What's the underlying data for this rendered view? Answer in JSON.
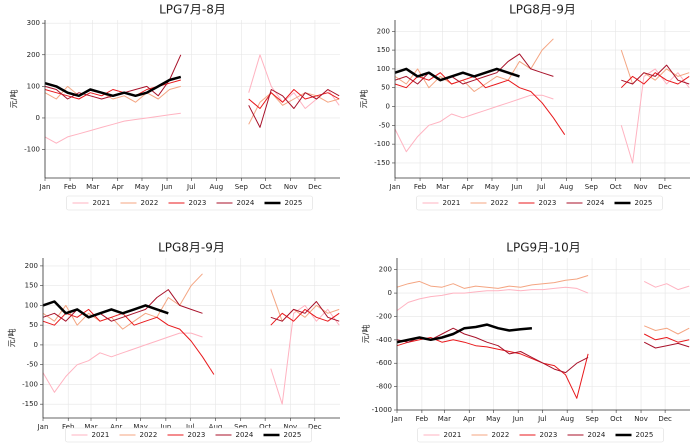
{
  "chart_data": [
    {
      "type": "line",
      "title": "LPG7月-8月",
      "y_label": "元/吨",
      "grid": true,
      "legend": "bottom",
      "x": [
        1,
        15,
        29,
        43,
        57,
        71,
        85,
        99,
        113,
        127,
        141,
        155,
        169,
        183,
        197,
        211,
        225,
        239,
        253,
        267,
        281,
        295,
        309,
        323,
        337,
        351,
        365
      ],
      "xlim": [
        1,
        366
      ],
      "xticks": [
        {
          "value": 1,
          "label": "Jan"
        },
        {
          "value": 32,
          "label": "Feb"
        },
        {
          "value": 60,
          "label": "Mar"
        },
        {
          "value": 91,
          "label": "Apr"
        },
        {
          "value": 121,
          "label": "May"
        },
        {
          "value": 152,
          "label": "Jun"
        },
        {
          "value": 182,
          "label": "Jul"
        },
        {
          "value": 213,
          "label": "Aug"
        },
        {
          "value": 244,
          "label": "Sep"
        },
        {
          "value": 274,
          "label": "Oct"
        },
        {
          "value": 305,
          "label": "Nov"
        },
        {
          "value": 335,
          "label": "Dec"
        }
      ],
      "ylim": [
        -190,
        310
      ],
      "yticks": [
        -100,
        0,
        100,
        200,
        300
      ],
      "series": [
        {
          "name": "2021",
          "color": "#ffb3c1",
          "linewidth": 1,
          "values": [
            -60,
            -80,
            -60,
            -50,
            -40,
            -30,
            -20,
            -10,
            -5,
            0,
            5,
            10,
            15,
            null,
            null,
            null,
            null,
            null,
            80,
            200,
            100,
            50,
            80,
            30,
            60,
            90,
            40
          ]
        },
        {
          "name": "2022",
          "color": "#f4a582",
          "linewidth": 1,
          "values": [
            80,
            60,
            100,
            70,
            90,
            80,
            60,
            70,
            50,
            80,
            60,
            90,
            100,
            null,
            null,
            null,
            null,
            null,
            -20,
            50,
            80,
            40,
            60,
            80,
            70,
            50,
            60
          ]
        },
        {
          "name": "2023",
          "color": "#e8191c",
          "linewidth": 1,
          "values": [
            90,
            80,
            70,
            60,
            80,
            70,
            90,
            80,
            70,
            90,
            100,
            110,
            120,
            null,
            null,
            null,
            null,
            null,
            60,
            30,
            80,
            50,
            90,
            60,
            70,
            80,
            60
          ]
        },
        {
          "name": "2024",
          "color": "#a8122a",
          "linewidth": 1,
          "values": [
            100,
            90,
            60,
            80,
            70,
            60,
            70,
            80,
            90,
            100,
            70,
            120,
            200,
            null,
            null,
            null,
            null,
            null,
            40,
            -30,
            90,
            70,
            30,
            80,
            60,
            90,
            70
          ]
        },
        {
          "name": "2025",
          "color": "#000000",
          "linewidth": 2.5,
          "values": [
            110,
            100,
            80,
            70,
            90,
            80,
            70,
            80,
            70,
            80,
            100,
            120,
            130,
            null,
            null,
            null,
            null,
            null,
            null,
            null,
            null,
            null,
            null,
            null,
            null,
            null,
            null
          ]
        }
      ]
    },
    {
      "type": "line",
      "title": "LPG8月-9月",
      "y_label": "元/吨",
      "grid": true,
      "legend": "bottom",
      "x": [
        1,
        15,
        29,
        43,
        57,
        71,
        85,
        99,
        113,
        127,
        141,
        155,
        169,
        183,
        197,
        211,
        225,
        239,
        253,
        267,
        281,
        295,
        309,
        323,
        337,
        351,
        365
      ],
      "xlim": [
        1,
        366
      ],
      "xticks": [
        {
          "value": 1,
          "label": "Jan"
        },
        {
          "value": 32,
          "label": "Feb"
        },
        {
          "value": 60,
          "label": "Mar"
        },
        {
          "value": 91,
          "label": "Apr"
        },
        {
          "value": 121,
          "label": "May"
        },
        {
          "value": 152,
          "label": "Jun"
        },
        {
          "value": 182,
          "label": "Jul"
        },
        {
          "value": 213,
          "label": "Aug"
        },
        {
          "value": 244,
          "label": "Sep"
        },
        {
          "value": 274,
          "label": "Oct"
        },
        {
          "value": 305,
          "label": "Nov"
        },
        {
          "value": 335,
          "label": "Dec"
        }
      ],
      "ylim": [
        -190,
        230
      ],
      "yticks": [
        -150,
        -100,
        -50,
        0,
        50,
        100,
        150,
        200
      ],
      "series": [
        {
          "name": "2021",
          "color": "#ffb3c1",
          "linewidth": 1,
          "values": [
            -60,
            -120,
            -80,
            -50,
            -40,
            -20,
            -30,
            -20,
            -10,
            0,
            10,
            20,
            30,
            30,
            20,
            null,
            null,
            null,
            null,
            null,
            -50,
            -150,
            80,
            100,
            60,
            90,
            50
          ]
        },
        {
          "name": "2022",
          "color": "#f4a582",
          "linewidth": 1,
          "values": [
            80,
            60,
            100,
            50,
            80,
            60,
            70,
            40,
            60,
            80,
            70,
            120,
            100,
            150,
            180,
            null,
            null,
            null,
            null,
            null,
            150,
            60,
            90,
            70,
            100,
            80,
            90
          ]
        },
        {
          "name": "2023",
          "color": "#e8191c",
          "linewidth": 1,
          "values": [
            60,
            50,
            80,
            70,
            90,
            60,
            70,
            80,
            50,
            60,
            70,
            50,
            40,
            10,
            -30,
            -75,
            null,
            null,
            null,
            null,
            50,
            80,
            60,
            90,
            70,
            60,
            80
          ]
        },
        {
          "name": "2024",
          "color": "#a8122a",
          "linewidth": 1,
          "values": [
            70,
            80,
            60,
            90,
            70,
            80,
            60,
            70,
            80,
            90,
            120,
            140,
            100,
            90,
            80,
            null,
            null,
            null,
            null,
            null,
            70,
            60,
            90,
            80,
            110,
            70,
            60
          ]
        },
        {
          "name": "2025",
          "color": "#000000",
          "linewidth": 2.5,
          "values": [
            90,
            100,
            80,
            90,
            70,
            80,
            90,
            80,
            90,
            100,
            90,
            80,
            null,
            null,
            null,
            null,
            null,
            null,
            null,
            null,
            null,
            null,
            null,
            null,
            null,
            null,
            null
          ]
        }
      ]
    },
    {
      "type": "line",
      "title": "LPG8月-9月",
      "y_label": "元/吨",
      "grid": true,
      "legend": "bottom",
      "x": [
        1,
        15,
        29,
        43,
        57,
        71,
        85,
        99,
        113,
        127,
        141,
        155,
        169,
        183,
        197,
        211,
        225,
        239,
        253,
        267,
        281,
        295,
        309,
        323,
        337,
        351,
        365
      ],
      "xlim": [
        1,
        366
      ],
      "xticks": [
        {
          "value": 1,
          "label": "Jan"
        },
        {
          "value": 32,
          "label": "Feb"
        },
        {
          "value": 60,
          "label": "Mar"
        },
        {
          "value": 91,
          "label": "Apr"
        },
        {
          "value": 121,
          "label": "May"
        },
        {
          "value": 152,
          "label": "Jun"
        },
        {
          "value": 182,
          "label": "Jul"
        },
        {
          "value": 213,
          "label": "Aug"
        },
        {
          "value": 244,
          "label": "Sep"
        },
        {
          "value": 274,
          "label": "Oct"
        },
        {
          "value": 305,
          "label": "Nov"
        },
        {
          "value": 335,
          "label": "Dec"
        }
      ],
      "ylim": [
        -185,
        220
      ],
      "yticks": [
        -150,
        -100,
        -50,
        0,
        50,
        100,
        150,
        200
      ],
      "series": [
        {
          "name": "2021",
          "color": "#ffb3c1",
          "linewidth": 1,
          "values": [
            -70,
            -120,
            -80,
            -50,
            -40,
            -20,
            -30,
            -20,
            -10,
            0,
            10,
            20,
            30,
            30,
            20,
            null,
            null,
            null,
            null,
            null,
            -60,
            -150,
            80,
            100,
            60,
            90,
            50
          ]
        },
        {
          "name": "2022",
          "color": "#f4a582",
          "linewidth": 1,
          "values": [
            80,
            60,
            100,
            50,
            80,
            60,
            70,
            40,
            60,
            80,
            70,
            120,
            100,
            150,
            180,
            null,
            null,
            null,
            null,
            null,
            140,
            60,
            90,
            70,
            100,
            80,
            90
          ]
        },
        {
          "name": "2023",
          "color": "#e8191c",
          "linewidth": 1,
          "values": [
            60,
            50,
            80,
            70,
            90,
            60,
            70,
            80,
            50,
            60,
            70,
            50,
            40,
            10,
            -30,
            -75,
            null,
            null,
            null,
            null,
            50,
            80,
            60,
            90,
            70,
            60,
            80
          ]
        },
        {
          "name": "2024",
          "color": "#a8122a",
          "linewidth": 1,
          "values": [
            70,
            80,
            60,
            90,
            70,
            80,
            60,
            70,
            80,
            90,
            120,
            140,
            100,
            90,
            80,
            null,
            null,
            null,
            null,
            null,
            70,
            60,
            90,
            80,
            110,
            70,
            60
          ]
        },
        {
          "name": "2025",
          "color": "#000000",
          "linewidth": 2.5,
          "values": [
            100,
            110,
            80,
            90,
            70,
            80,
            90,
            80,
            90,
            100,
            90,
            80,
            null,
            null,
            null,
            null,
            null,
            null,
            null,
            null,
            null,
            null,
            null,
            null,
            null,
            null,
            null
          ]
        }
      ]
    },
    {
      "type": "line",
      "title": "LPG9月-10月",
      "y_label": "元/吨",
      "grid": true,
      "legend": "bottom",
      "x": [
        1,
        15,
        29,
        43,
        57,
        71,
        85,
        99,
        113,
        127,
        141,
        155,
        169,
        183,
        197,
        211,
        225,
        239,
        253,
        267,
        281,
        295,
        309,
        323,
        337,
        351,
        365
      ],
      "xlim": [
        1,
        366
      ],
      "xticks": [
        {
          "value": 1,
          "label": "Jan"
        },
        {
          "value": 32,
          "label": "Feb"
        },
        {
          "value": 60,
          "label": "Mar"
        },
        {
          "value": 91,
          "label": "Apr"
        },
        {
          "value": 121,
          "label": "May"
        },
        {
          "value": 152,
          "label": "Jun"
        },
        {
          "value": 182,
          "label": "Jul"
        },
        {
          "value": 213,
          "label": "Aug"
        },
        {
          "value": 244,
          "label": "Sep"
        },
        {
          "value": 274,
          "label": "Oct"
        },
        {
          "value": 305,
          "label": "Nov"
        },
        {
          "value": 335,
          "label": "Dec"
        }
      ],
      "ylim": [
        -1000,
        300
      ],
      "yticks": [
        -1000,
        -800,
        -600,
        -400,
        -200,
        0,
        200
      ],
      "series": [
        {
          "name": "2021",
          "color": "#ffb3c1",
          "linewidth": 1,
          "values": [
            -150,
            -80,
            -50,
            -30,
            -20,
            0,
            0,
            10,
            20,
            20,
            30,
            20,
            30,
            30,
            40,
            50,
            40,
            0,
            null,
            null,
            null,
            null,
            100,
            50,
            80,
            30,
            60
          ]
        },
        {
          "name": "2022",
          "color": "#f4a582",
          "linewidth": 1,
          "values": [
            50,
            80,
            100,
            60,
            50,
            80,
            40,
            60,
            50,
            40,
            60,
            50,
            70,
            80,
            90,
            110,
            120,
            150,
            null,
            null,
            null,
            null,
            -280,
            -320,
            -300,
            -350,
            -300
          ]
        },
        {
          "name": "2023",
          "color": "#e8191c",
          "linewidth": 1,
          "values": [
            -450,
            -420,
            -400,
            -380,
            -420,
            -400,
            -420,
            -450,
            -460,
            -480,
            -500,
            -520,
            -560,
            -600,
            -620,
            -700,
            -900,
            -520,
            null,
            null,
            null,
            null,
            -350,
            -400,
            -380,
            -420,
            -400
          ]
        },
        {
          "name": "2024",
          "color": "#a8122a",
          "linewidth": 1,
          "values": [
            -400,
            -420,
            -380,
            -400,
            -350,
            -300,
            -350,
            -380,
            -420,
            -450,
            -520,
            -500,
            -550,
            -600,
            -650,
            -680,
            -600,
            -550,
            null,
            null,
            null,
            null,
            -420,
            -470,
            -450,
            -430,
            -460
          ]
        },
        {
          "name": "2025",
          "color": "#000000",
          "linewidth": 2.5,
          "values": [
            -420,
            -400,
            -380,
            -400,
            -380,
            -350,
            -300,
            -290,
            -270,
            -300,
            -320,
            -310,
            -300,
            null,
            null,
            null,
            null,
            null,
            null,
            null,
            null,
            null,
            null,
            null,
            null,
            null,
            null
          ]
        }
      ]
    }
  ]
}
